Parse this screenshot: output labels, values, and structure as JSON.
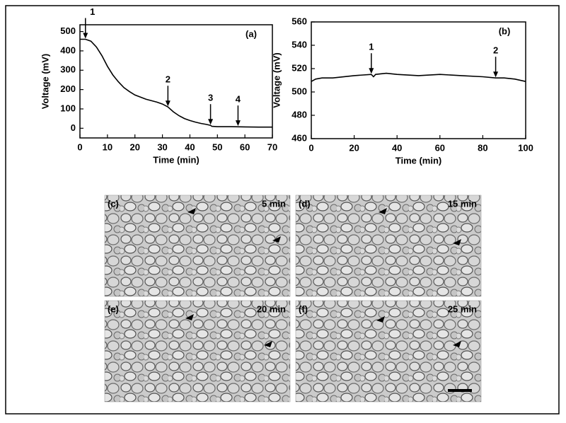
{
  "chart_data": [
    {
      "type": "line",
      "panel_label": "(a)",
      "x_label": "Time (min)",
      "y_label": "Voltage (mV)",
      "x": [
        0,
        2,
        4,
        6,
        8,
        10,
        12,
        14,
        16,
        18,
        20,
        24,
        28,
        30,
        32,
        34,
        36,
        38,
        40,
        42,
        44,
        46,
        47.5,
        48,
        50,
        55,
        60,
        65,
        70
      ],
      "series": [
        {
          "color": "#000000",
          "values": [
            460,
            460,
            450,
            420,
            375,
            320,
            275,
            240,
            210,
            190,
            172,
            150,
            135,
            125,
            110,
            85,
            65,
            50,
            40,
            32,
            25,
            20,
            15,
            10,
            8,
            8,
            7,
            6,
            6
          ]
        }
      ],
      "xlim": [
        0,
        70
      ],
      "ylim": [
        -50,
        535
      ],
      "xticks": [
        0,
        10,
        20,
        30,
        40,
        50,
        60,
        70
      ],
      "yticks": [
        0,
        100,
        200,
        300,
        400,
        500
      ],
      "annotations": [
        {
          "text": "1",
          "x": 2,
          "y": 460
        },
        {
          "text": "2",
          "x": 32,
          "y": 110
        },
        {
          "text": "3",
          "x": 47.5,
          "y": 15
        },
        {
          "text": "4",
          "x": 57.5,
          "y": 8
        }
      ]
    },
    {
      "type": "line",
      "panel_label": "(b)",
      "x_label": "Time (min)",
      "y_label": "Voltage (mV)",
      "x": [
        0,
        2,
        5,
        10,
        20,
        28,
        29,
        30,
        35,
        40,
        50,
        60,
        70,
        80,
        86,
        90,
        95,
        100
      ],
      "series": [
        {
          "color": "#000000",
          "values": [
            509,
            511,
            512,
            512,
            514,
            515,
            513,
            515,
            516,
            515,
            514,
            515,
            514,
            513,
            512,
            512,
            511,
            509
          ]
        }
      ],
      "xlim": [
        0,
        100
      ],
      "ylim": [
        460,
        560
      ],
      "xticks": [
        0,
        20,
        40,
        60,
        80,
        100
      ],
      "yticks": [
        460,
        480,
        500,
        520,
        540,
        560
      ],
      "annotations": [
        {
          "text": "1",
          "x": 28,
          "y": 515
        },
        {
          "text": "2",
          "x": 86,
          "y": 512
        }
      ]
    }
  ],
  "images": [
    {
      "label": "(c)",
      "time": "5 min"
    },
    {
      "label": "(d)",
      "time": "15 min"
    },
    {
      "label": "(e)",
      "time": "20 min"
    },
    {
      "label": "(f)",
      "time": "25 min"
    }
  ]
}
